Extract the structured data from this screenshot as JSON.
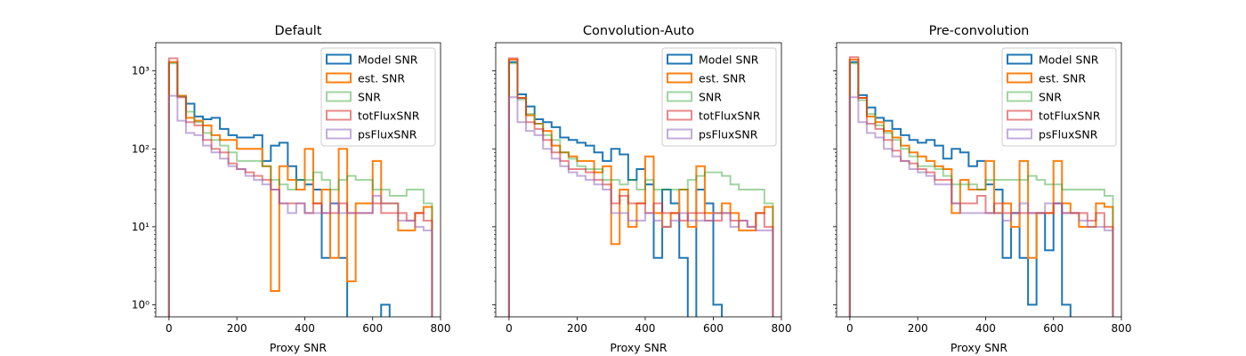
{
  "colors": {
    "Model SNR": "#1f77b4",
    "est. SNR": "#ff7f0e",
    "SNR": "#2ca02c",
    "totFluxSNR": "#d62728",
    "psFluxSNR": "#9467bd"
  },
  "chart_data": [
    {
      "type": "histogram",
      "title": "Default",
      "xlabel": "Proxy SNR",
      "ylabel": "",
      "xlim": [
        -39,
        800
      ],
      "ylim": [
        0.7,
        2300
      ],
      "yscale": "log",
      "x_ticks": [
        "0",
        "200",
        "400",
        "600",
        "800"
      ],
      "y_ticks": [
        "10⁰",
        "10¹",
        "10²",
        "10³"
      ],
      "legend_position": "upper right",
      "bin_edges": [
        0,
        25,
        50,
        75,
        100,
        125,
        150,
        175,
        200,
        225,
        250,
        275,
        300,
        325,
        350,
        375,
        400,
        425,
        450,
        475,
        500,
        525,
        550,
        575,
        600,
        625,
        650,
        675,
        700,
        725,
        750,
        775
      ],
      "series": [
        {
          "name": "Model SNR",
          "values": [
            1300,
            480,
            380,
            260,
            240,
            250,
            180,
            150,
            140,
            140,
            150,
            70,
            110,
            120,
            60,
            40,
            35,
            30,
            4,
            20,
            4,
            null,
            null,
            null,
            null,
            1,
            null,
            null,
            null,
            null,
            null
          ],
          "alpha": 1.0
        },
        {
          "name": "est. SNR",
          "values": [
            1300,
            480,
            250,
            230,
            200,
            150,
            130,
            130,
            100,
            100,
            100,
            60,
            1.5,
            60,
            40,
            30,
            100,
            20,
            30,
            4,
            100,
            2,
            20,
            20,
            70,
            20,
            20,
            9,
            9,
            15,
            18
          ],
          "alpha": 1.0
        },
        {
          "name": "SNR",
          "values": [
            1250,
            470,
            300,
            220,
            160,
            130,
            110,
            90,
            70,
            70,
            70,
            60,
            40,
            35,
            30,
            40,
            40,
            50,
            40,
            30,
            40,
            45,
            40,
            40,
            30,
            30,
            25,
            25,
            30,
            30,
            20
          ],
          "alpha": 0.45
        },
        {
          "name": "totFluxSNR",
          "values": [
            1450,
            460,
            220,
            200,
            130,
            100,
            90,
            65,
            55,
            50,
            45,
            40,
            30,
            20,
            20,
            20,
            15,
            20,
            15,
            15,
            20,
            15,
            15,
            15,
            20,
            15,
            15,
            15,
            12,
            15,
            12
          ],
          "alpha": 0.55
        },
        {
          "name": "psFluxSNR",
          "values": [
            480,
            230,
            160,
            150,
            110,
            90,
            75,
            60,
            55,
            45,
            40,
            35,
            30,
            20,
            15,
            20,
            15,
            15,
            15,
            20,
            15,
            15,
            15,
            15,
            25,
            20,
            20,
            12,
            12,
            10,
            9
          ],
          "alpha": 0.55
        }
      ]
    },
    {
      "type": "histogram",
      "title": "Convolution-Auto",
      "xlabel": "Proxy SNR",
      "ylabel": "",
      "xlim": [
        -39,
        800
      ],
      "ylim": [
        0.7,
        2300
      ],
      "yscale": "log",
      "x_ticks": [
        "0",
        "200",
        "400",
        "600",
        "800"
      ],
      "y_ticks": [],
      "legend_position": "upper right",
      "bin_edges": [
        0,
        25,
        50,
        75,
        100,
        125,
        150,
        175,
        200,
        225,
        250,
        275,
        300,
        325,
        350,
        375,
        400,
        425,
        450,
        475,
        500,
        525,
        550,
        575,
        600,
        625,
        650,
        675,
        700,
        725,
        750,
        775
      ],
      "series": [
        {
          "name": "Model SNR",
          "values": [
            1300,
            500,
            350,
            240,
            220,
            190,
            140,
            130,
            120,
            110,
            90,
            70,
            100,
            85,
            40,
            55,
            35,
            4,
            30,
            20,
            4,
            null,
            30,
            20,
            1,
            null,
            null,
            null,
            null,
            null,
            null
          ],
          "alpha": 1.0
        },
        {
          "name": "est. SNR",
          "values": [
            1400,
            450,
            270,
            210,
            170,
            110,
            90,
            80,
            70,
            70,
            50,
            60,
            6,
            30,
            10,
            20,
            80,
            15,
            10,
            15,
            30,
            10,
            60,
            15,
            15,
            20,
            15,
            9,
            9,
            15,
            18
          ],
          "alpha": 1.0
        },
        {
          "name": "SNR",
          "values": [
            1250,
            430,
            280,
            210,
            150,
            130,
            90,
            75,
            60,
            55,
            55,
            40,
            40,
            35,
            40,
            30,
            40,
            30,
            30,
            30,
            30,
            40,
            45,
            50,
            50,
            45,
            35,
            30,
            30,
            30,
            20
          ],
          "alpha": 0.45
        },
        {
          "name": "totFluxSNR",
          "values": [
            1450,
            450,
            220,
            180,
            130,
            90,
            70,
            55,
            55,
            50,
            40,
            35,
            20,
            25,
            20,
            20,
            15,
            20,
            15,
            15,
            12,
            15,
            15,
            12,
            12,
            15,
            12,
            12,
            10,
            15,
            10
          ],
          "alpha": 0.55
        },
        {
          "name": "psFluxSNR",
          "values": [
            460,
            220,
            170,
            150,
            100,
            75,
            60,
            50,
            45,
            40,
            35,
            30,
            15,
            15,
            12,
            12,
            15,
            12,
            10,
            12,
            15,
            12,
            12,
            12,
            15,
            15,
            10,
            12,
            10,
            9,
            9
          ],
          "alpha": 0.55
        }
      ]
    },
    {
      "type": "histogram",
      "title": "Pre-convolution",
      "xlabel": "Proxy SNR",
      "ylabel": "",
      "xlim": [
        -39,
        800
      ],
      "ylim": [
        0.7,
        2300
      ],
      "yscale": "log",
      "x_ticks": [
        "0",
        "200",
        "400",
        "600",
        "800"
      ],
      "y_ticks": [],
      "legend_position": "upper right",
      "bin_edges": [
        0,
        25,
        50,
        75,
        100,
        125,
        150,
        175,
        200,
        225,
        250,
        275,
        300,
        325,
        350,
        375,
        400,
        425,
        450,
        475,
        500,
        525,
        550,
        575,
        600,
        625,
        650,
        675,
        700,
        725,
        750,
        775
      ],
      "series": [
        {
          "name": "Model SNR",
          "values": [
            1300,
            490,
            340,
            250,
            230,
            180,
            150,
            130,
            120,
            130,
            110,
            75,
            100,
            90,
            60,
            70,
            35,
            30,
            4,
            15,
            4,
            1,
            15,
            5,
            20,
            1,
            null,
            null,
            null,
            null,
            null
          ],
          "alpha": 1.0
        },
        {
          "name": "est. SNR",
          "values": [
            1400,
            450,
            260,
            220,
            170,
            140,
            110,
            90,
            80,
            70,
            60,
            55,
            15,
            40,
            30,
            30,
            70,
            15,
            20,
            10,
            70,
            4,
            15,
            15,
            70,
            20,
            15,
            10,
            10,
            20,
            18
          ],
          "alpha": 1.0
        },
        {
          "name": "SNR",
          "values": [
            1250,
            420,
            280,
            200,
            160,
            130,
            100,
            80,
            60,
            60,
            55,
            45,
            35,
            35,
            35,
            30,
            40,
            40,
            40,
            40,
            40,
            45,
            40,
            35,
            35,
            30,
            30,
            30,
            30,
            30,
            25
          ],
          "alpha": 0.45
        },
        {
          "name": "totFluxSNR",
          "values": [
            1500,
            450,
            210,
            180,
            130,
            95,
            70,
            65,
            55,
            50,
            40,
            40,
            20,
            20,
            20,
            25,
            15,
            20,
            15,
            15,
            15,
            15,
            15,
            15,
            20,
            15,
            15,
            15,
            12,
            15,
            10
          ],
          "alpha": 0.55
        },
        {
          "name": "psFluxSNR",
          "values": [
            460,
            220,
            160,
            140,
            100,
            80,
            70,
            55,
            50,
            45,
            35,
            35,
            20,
            15,
            15,
            15,
            15,
            15,
            12,
            15,
            20,
            15,
            15,
            20,
            20,
            15,
            15,
            12,
            10,
            10,
            9
          ],
          "alpha": 0.55
        }
      ]
    }
  ]
}
